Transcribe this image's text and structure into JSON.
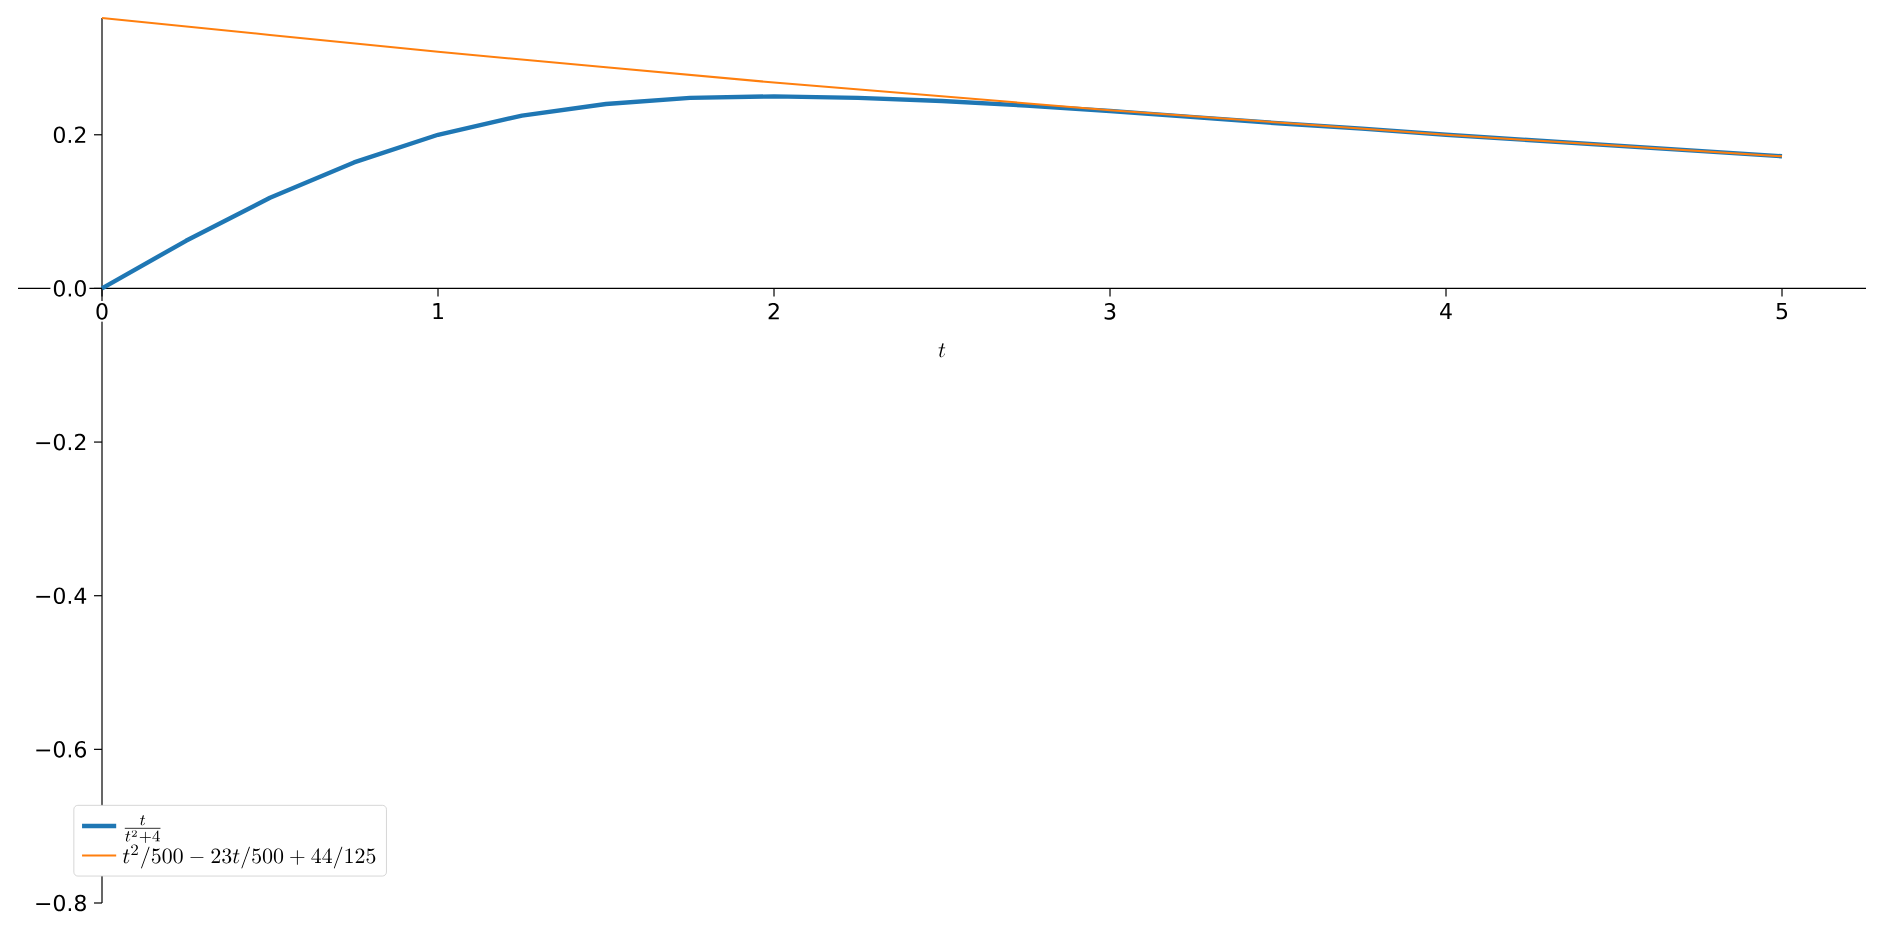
{
  "chart_data": {
    "type": "line",
    "xlabel": "t",
    "xlim": [
      -0.25,
      5.25
    ],
    "ylim": [
      -0.8,
      0.352
    ],
    "xticks": [
      0,
      1,
      2,
      3,
      4,
      5
    ],
    "yticks": [
      {
        "value": -0.8,
        "label": "−0.8"
      },
      {
        "value": -0.6,
        "label": "−0.6"
      },
      {
        "value": -0.4,
        "label": "−0.4"
      },
      {
        "value": -0.2,
        "label": "−0.2"
      },
      {
        "value": 0,
        "label": "0.0"
      },
      {
        "value": 0.2,
        "label": "0.2"
      }
    ],
    "legend": "bottom left",
    "series": [
      {
        "name": "\\frac{t}{t^{2} + 4}",
        "color": "#1f77b4",
        "x": [
          0,
          0.25,
          0.5,
          0.75,
          1,
          1.25,
          1.5,
          1.75,
          2,
          2.25,
          2.5,
          2.75,
          3,
          3.25,
          3.5,
          3.75,
          4,
          4.25,
          4.5,
          4.75,
          5
        ],
        "values": [
          0,
          0.062,
          0.118,
          0.164,
          0.2,
          0.225,
          0.24,
          0.248,
          0.25,
          0.248,
          0.244,
          0.238,
          0.231,
          0.223,
          0.215,
          0.208,
          0.2,
          0.193,
          0.186,
          0.179,
          0.172
        ]
      },
      {
        "name": "t^{2}/500 - 23 t/500 + 44/125",
        "color": "#ff7f0e",
        "x": [
          0,
          0.5,
          1,
          1.5,
          2,
          2.5,
          3,
          3.5,
          4,
          4.5,
          5
        ],
        "values": [
          0.352,
          0.33,
          0.308,
          0.288,
          0.268,
          0.25,
          0.232,
          0.216,
          0.2,
          0.186,
          0.172
        ]
      }
    ]
  }
}
